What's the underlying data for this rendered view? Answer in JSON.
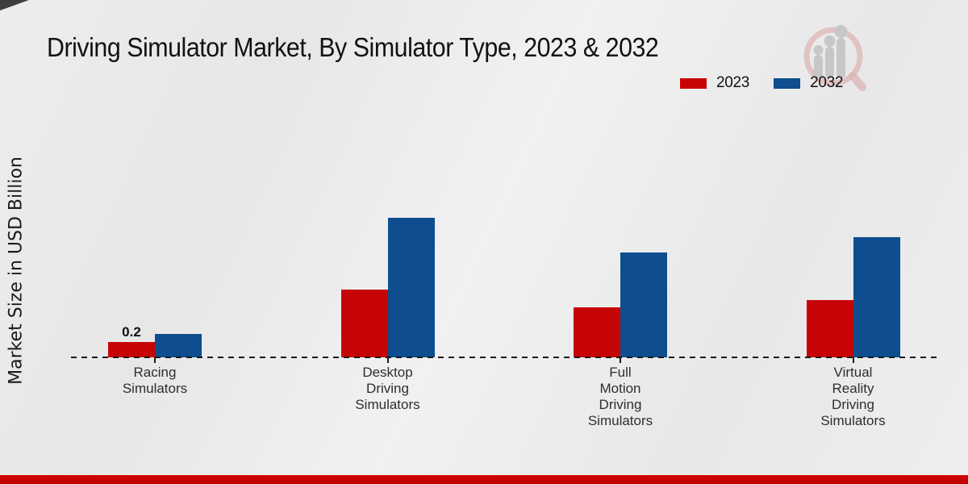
{
  "title": "Driving Simulator Market, By Simulator Type, 2023 & 2032",
  "y_axis_label": "Market Size in USD Billion",
  "legend": {
    "items": [
      {
        "label": "2023",
        "color": "#c70405"
      },
      {
        "label": "2032",
        "color": "#0e4d8e"
      }
    ]
  },
  "icons": {
    "watermark": "magnifier-bar-chart-logo"
  },
  "colors": {
    "series_2023": "#c70405",
    "series_2032": "#0e4d8e",
    "footer_stripe": "#c00000",
    "background": "#eaeaea",
    "baseline": "#1a1a1a",
    "watermark_ring": "#ddb5b5",
    "watermark_bars": "#c7c7c7"
  },
  "chart_data": {
    "type": "bar",
    "title": "Driving Simulator Market, By Simulator Type, 2023 & 2032",
    "xlabel": "",
    "ylabel": "Market Size in USD Billion",
    "categories": [
      "Racing Simulators",
      "Desktop Driving Simulators",
      "Full Motion Driving Simulators",
      "Virtual Reality Driving Simulators"
    ],
    "category_label_lines": [
      [
        "Racing",
        "Simulators"
      ],
      [
        "Desktop",
        "Driving",
        "Simulators"
      ],
      [
        "Full",
        "Motion",
        "Driving",
        "Simulators"
      ],
      [
        "Virtual",
        "Reality",
        "Driving",
        "Simulators"
      ]
    ],
    "series": [
      {
        "name": "2023",
        "color": "#c70405",
        "values": [
          0.2,
          0.88,
          0.65,
          0.75
        ]
      },
      {
        "name": "2032",
        "color": "#0e4d8e",
        "values": [
          0.3,
          1.82,
          1.37,
          1.57
        ]
      }
    ],
    "data_labels": [
      {
        "series": "2023",
        "category_index": 0,
        "text": "0.2"
      }
    ],
    "ylim": [
      0,
      2
    ],
    "unit": "USD Billion",
    "grid": false,
    "y_axis_ticks_visible": false,
    "baseline_style": "dashed",
    "legend_position": "top-right"
  }
}
